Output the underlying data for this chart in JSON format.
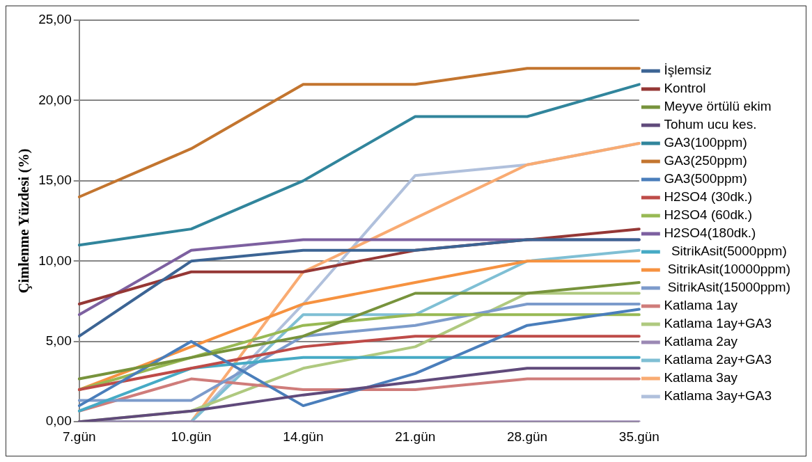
{
  "chart_data": {
    "type": "line",
    "ylabel": "Çimlenme Yüzdesi (%)",
    "categories": [
      "7.gün",
      "10.gün",
      "14.gün",
      "21.gün",
      "28.gün",
      "35.gün"
    ],
    "ylim": [
      0,
      25
    ],
    "yticks": [
      {
        "value": 0,
        "label": "0,00"
      },
      {
        "value": 5,
        "label": "5,00"
      },
      {
        "value": 10,
        "label": "10,00"
      },
      {
        "value": 15,
        "label": "15,00"
      },
      {
        "value": 20,
        "label": "20,00"
      },
      {
        "value": 25,
        "label": "25,00"
      }
    ],
    "grid": "y",
    "legend": "right",
    "marker": "none",
    "line_style": "solid",
    "series": [
      {
        "name": "İşlemsiz",
        "color": "#3c6494",
        "values": [
          5.33,
          10,
          10.67,
          10.67,
          11.33,
          11.33
        ]
      },
      {
        "name": "Kontrol",
        "color": "#953735",
        "values": [
          7.33,
          9.33,
          9.33,
          10.67,
          11.33,
          12
        ]
      },
      {
        "name": "Meyve örtülü ekim",
        "color": "#77933c",
        "values": [
          2.67,
          4,
          5.33,
          8,
          8,
          8.67
        ]
      },
      {
        "name": "Tohum ucu kes.",
        "color": "#604a7b",
        "values": [
          0,
          0.67,
          1.67,
          2.5,
          3.33,
          3.33
        ]
      },
      {
        "name": "GA3(100ppm)",
        "color": "#31859c",
        "values": [
          11,
          12,
          15,
          19,
          19,
          21
        ]
      },
      {
        "name": "GA3(250ppm)",
        "color": "#c3752f",
        "values": [
          14,
          17,
          21,
          21,
          22,
          22
        ]
      },
      {
        "name": "GA3(500ppm)",
        "color": "#4a7ebb",
        "values": [
          1,
          5,
          1,
          3,
          6,
          7
        ]
      },
      {
        "name": "H2SO4 (30dk.)",
        "color": "#be4b48",
        "values": [
          2,
          3.33,
          4.67,
          5.33,
          5.33,
          5.33
        ]
      },
      {
        "name": "H2SO4 (60dk.)",
        "color": "#98b954",
        "values": [
          2,
          4,
          6,
          6.67,
          6.67,
          6.67
        ]
      },
      {
        "name": "H2SO4(180dk.)",
        "color": "#7d60a0",
        "values": [
          6.67,
          10.67,
          11.33,
          11.33,
          11.33,
          11.33
        ]
      },
      {
        "name": "  SitrikAsit(5000ppm)",
        "color": "#46aac5",
        "values": [
          0.67,
          3.33,
          4,
          4,
          4,
          4
        ]
      },
      {
        "name": " SitrikAsit(10000ppm)",
        "color": "#f69240",
        "values": [
          2,
          4.67,
          7.33,
          8.67,
          10,
          10
        ]
      },
      {
        "name": " SitrikAsit(15000ppm)",
        "color": "#7c9bcb",
        "values": [
          1.33,
          1.33,
          5.33,
          6,
          7.33,
          7.33
        ]
      },
      {
        "name": "Katlama 1ay",
        "color": "#cf7c7a",
        "values": [
          0.67,
          2.67,
          2,
          2,
          2.67,
          2.67
        ]
      },
      {
        "name": "Katlama 1ay+GA3",
        "color": "#afc97f",
        "values": [
          0,
          0.67,
          3.33,
          4.67,
          8,
          8
        ]
      },
      {
        "name": "Katlama 2ay",
        "color": "#9b88b4",
        "values": [
          0,
          0,
          0,
          0,
          0,
          0
        ]
      },
      {
        "name": "Katlama 2ay+GA3",
        "color": "#7fbfd4",
        "values": [
          0,
          0,
          6.67,
          6.67,
          10,
          10.67
        ]
      },
      {
        "name": "Katlama 3ay",
        "color": "#f9ab72",
        "values": [
          0,
          0,
          9.33,
          12.67,
          16,
          17.33
        ]
      },
      {
        "name": "Katlama 3ay+GA3",
        "color": "#b0c0dc",
        "values": [
          0,
          0,
          7.33,
          15.33,
          16,
          17.33
        ]
      }
    ]
  }
}
